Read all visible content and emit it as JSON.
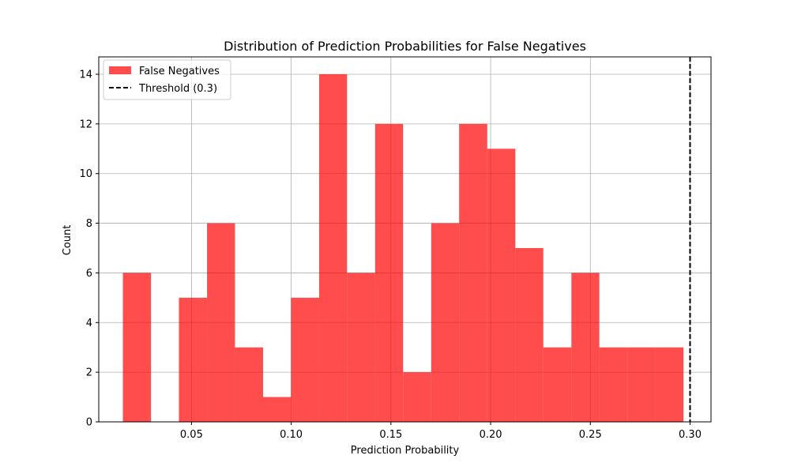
{
  "chart_data": {
    "type": "bar",
    "title": "Distribution of Prediction Probabilities for False Negatives",
    "xlabel": "Prediction Probability",
    "ylabel": "Count",
    "xlim": [
      0.0035,
      0.3105
    ],
    "ylim": [
      0,
      14.7
    ],
    "x_ticks": [
      0.05,
      0.1,
      0.15,
      0.2,
      0.25,
      0.3
    ],
    "x_tick_labels": [
      "0.05",
      "0.10",
      "0.15",
      "0.20",
      "0.25",
      "0.30"
    ],
    "y_ticks": [
      0,
      2,
      4,
      6,
      8,
      10,
      12,
      14
    ],
    "y_tick_labels": [
      "0",
      "2",
      "4",
      "6",
      "8",
      "10",
      "12",
      "14"
    ],
    "grid": true,
    "legend_position": "top-left",
    "series": [
      {
        "name": "False Negatives",
        "kind": "histogram",
        "color": "#ff0000",
        "opacity": 0.7,
        "bin_edges": [
          0.0156,
          0.0297,
          0.0437,
          0.0578,
          0.0718,
          0.0859,
          0.0999,
          0.114,
          0.128,
          0.1421,
          0.1561,
          0.1702,
          0.1842,
          0.1983,
          0.2124,
          0.2264,
          0.2405,
          0.2545,
          0.2686,
          0.2826,
          0.2967
        ],
        "counts": [
          6,
          0,
          5,
          8,
          3,
          1,
          5,
          14,
          6,
          12,
          2,
          8,
          12,
          11,
          7,
          3,
          6,
          3,
          3,
          3
        ]
      },
      {
        "name": "Threshold (0.3)",
        "kind": "vline",
        "x": 0.3,
        "color": "#000000",
        "linestyle": "dashed"
      }
    ]
  }
}
